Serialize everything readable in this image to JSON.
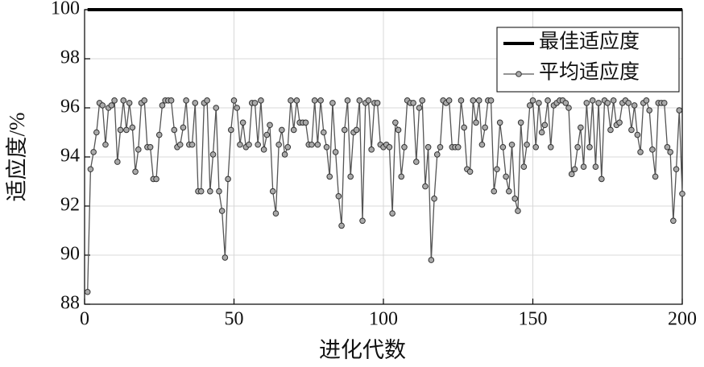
{
  "chart_data": {
    "type": "line",
    "xlabel": "进化代数",
    "ylabel": "适应度/%",
    "x": [
      1,
      2,
      3,
      4,
      5,
      6,
      7,
      8,
      9,
      10,
      11,
      12,
      13,
      14,
      15,
      16,
      17,
      18,
      19,
      20,
      21,
      22,
      23,
      24,
      25,
      26,
      27,
      28,
      29,
      30,
      31,
      32,
      33,
      34,
      35,
      36,
      37,
      38,
      39,
      40,
      41,
      42,
      43,
      44,
      45,
      46,
      47,
      48,
      49,
      50,
      51,
      52,
      53,
      54,
      55,
      56,
      57,
      58,
      59,
      60,
      61,
      62,
      63,
      64,
      65,
      66,
      67,
      68,
      69,
      70,
      71,
      72,
      73,
      74,
      75,
      76,
      77,
      78,
      79,
      80,
      81,
      82,
      83,
      84,
      85,
      86,
      87,
      88,
      89,
      90,
      91,
      92,
      93,
      94,
      95,
      96,
      97,
      98,
      99,
      100,
      101,
      102,
      103,
      104,
      105,
      106,
      107,
      108,
      109,
      110,
      111,
      112,
      113,
      114,
      115,
      116,
      117,
      118,
      119,
      120,
      121,
      122,
      123,
      124,
      125,
      126,
      127,
      128,
      129,
      130,
      131,
      132,
      133,
      134,
      135,
      136,
      137,
      138,
      139,
      140,
      141,
      142,
      143,
      144,
      145,
      146,
      147,
      148,
      149,
      150,
      151,
      152,
      153,
      154,
      155,
      156,
      157,
      158,
      159,
      160,
      161,
      162,
      163,
      164,
      165,
      166,
      167,
      168,
      169,
      170,
      171,
      172,
      173,
      174,
      175,
      176,
      177,
      178,
      179,
      180,
      181,
      182,
      183,
      184,
      185,
      186,
      187,
      188,
      189,
      190,
      191,
      192,
      193,
      194,
      195,
      196,
      197,
      198,
      199,
      200
    ],
    "series": [
      {
        "name": "最佳适应度",
        "color": "#000000",
        "values": [
          100,
          100,
          100,
          100,
          100,
          100,
          100,
          100,
          100,
          100,
          100,
          100,
          100,
          100,
          100,
          100,
          100,
          100,
          100,
          100,
          100,
          100,
          100,
          100,
          100,
          100,
          100,
          100,
          100,
          100,
          100,
          100,
          100,
          100,
          100,
          100,
          100,
          100,
          100,
          100,
          100,
          100,
          100,
          100,
          100,
          100,
          100,
          100,
          100,
          100,
          100,
          100,
          100,
          100,
          100,
          100,
          100,
          100,
          100,
          100,
          100,
          100,
          100,
          100,
          100,
          100,
          100,
          100,
          100,
          100,
          100,
          100,
          100,
          100,
          100,
          100,
          100,
          100,
          100,
          100,
          100,
          100,
          100,
          100,
          100,
          100,
          100,
          100,
          100,
          100,
          100,
          100,
          100,
          100,
          100,
          100,
          100,
          100,
          100,
          100,
          100,
          100,
          100,
          100,
          100,
          100,
          100,
          100,
          100,
          100,
          100,
          100,
          100,
          100,
          100,
          100,
          100,
          100,
          100,
          100,
          100,
          100,
          100,
          100,
          100,
          100,
          100,
          100,
          100,
          100,
          100,
          100,
          100,
          100,
          100,
          100,
          100,
          100,
          100,
          100,
          100,
          100,
          100,
          100,
          100,
          100,
          100,
          100,
          100,
          100,
          100,
          100,
          100,
          100,
          100,
          100,
          100,
          100,
          100,
          100,
          100,
          100,
          100,
          100,
          100,
          100,
          100,
          100,
          100,
          100,
          100,
          100,
          100,
          100,
          100,
          100,
          100,
          100,
          100,
          100,
          100,
          100,
          100,
          100,
          100,
          100,
          100,
          100,
          100,
          100,
          100,
          100,
          100,
          100,
          100,
          100,
          100,
          100,
          100,
          100
        ]
      },
      {
        "name": "平均适应度",
        "color": "#555555",
        "values": [
          88.5,
          93.5,
          94.2,
          95,
          96.2,
          96.1,
          94.5,
          96,
          96.1,
          96.3,
          93.8,
          95.1,
          96.3,
          95.1,
          96.2,
          95.2,
          93.4,
          94.3,
          96.2,
          96.3,
          94.4,
          94.4,
          93.1,
          93.1,
          94.9,
          96.1,
          96.3,
          96.3,
          96.3,
          95.1,
          94.4,
          94.5,
          95.2,
          96.3,
          94.5,
          94.5,
          96.2,
          92.6,
          92.6,
          96.2,
          96.3,
          92.6,
          94.1,
          96,
          92.6,
          91.8,
          89.9,
          93.1,
          95.1,
          96.3,
          96,
          94.5,
          95.4,
          94.4,
          94.5,
          96.2,
          96.2,
          94.5,
          96.3,
          94.3,
          94.9,
          95.3,
          92.6,
          91.7,
          94.5,
          95.1,
          94.1,
          94.4,
          96.3,
          95.1,
          96.3,
          95.4,
          95.4,
          95.4,
          94.5,
          94.5,
          96.3,
          94.5,
          96.3,
          95,
          94.4,
          93.2,
          96.2,
          94.2,
          92.4,
          91.2,
          95.1,
          96.3,
          93.2,
          95,
          95.1,
          96.3,
          91.4,
          96.2,
          96.3,
          94.3,
          96.2,
          96.2,
          94.5,
          94.4,
          94.5,
          94.4,
          91.7,
          95.4,
          95.1,
          93.2,
          94.4,
          96.3,
          96.2,
          96.2,
          93.8,
          96,
          96.3,
          92.8,
          94.4,
          89.8,
          92.3,
          94.1,
          94.4,
          96.3,
          96.2,
          96.3,
          94.4,
          94.4,
          94.4,
          96.3,
          95.2,
          93.5,
          93.4,
          96.3,
          95.4,
          96.3,
          94.5,
          95.2,
          96.3,
          96.3,
          92.6,
          93.5,
          95.4,
          94.4,
          93.2,
          92.6,
          94.5,
          92.3,
          91.8,
          95.4,
          93.6,
          94.5,
          96.1,
          96.3,
          94.4,
          96.2,
          95,
          95.3,
          96.3,
          94.4,
          96.1,
          96.2,
          96.3,
          96.3,
          96.2,
          96,
          93.3,
          93.5,
          94.4,
          95.2,
          93.6,
          96.2,
          94.4,
          96.3,
          93.6,
          96.2,
          93.1,
          96.3,
          96.2,
          95.1,
          96.3,
          95.3,
          95.4,
          96.2,
          96.3,
          96.2,
          95.1,
          96.1,
          94.9,
          94.2,
          96.2,
          96.3,
          95.9,
          94.3,
          93.2,
          96.2,
          96.2,
          96.2,
          94.4,
          94.2,
          91.4,
          93.5,
          95.9,
          92.5
        ]
      }
    ],
    "xlim": [
      0,
      200
    ],
    "xticks": [
      0,
      50,
      100,
      150,
      200
    ],
    "ylim": [
      88,
      100
    ],
    "yticks": [
      88,
      90,
      92,
      94,
      96,
      98,
      100
    ],
    "grid": true,
    "legend": "upper right"
  }
}
